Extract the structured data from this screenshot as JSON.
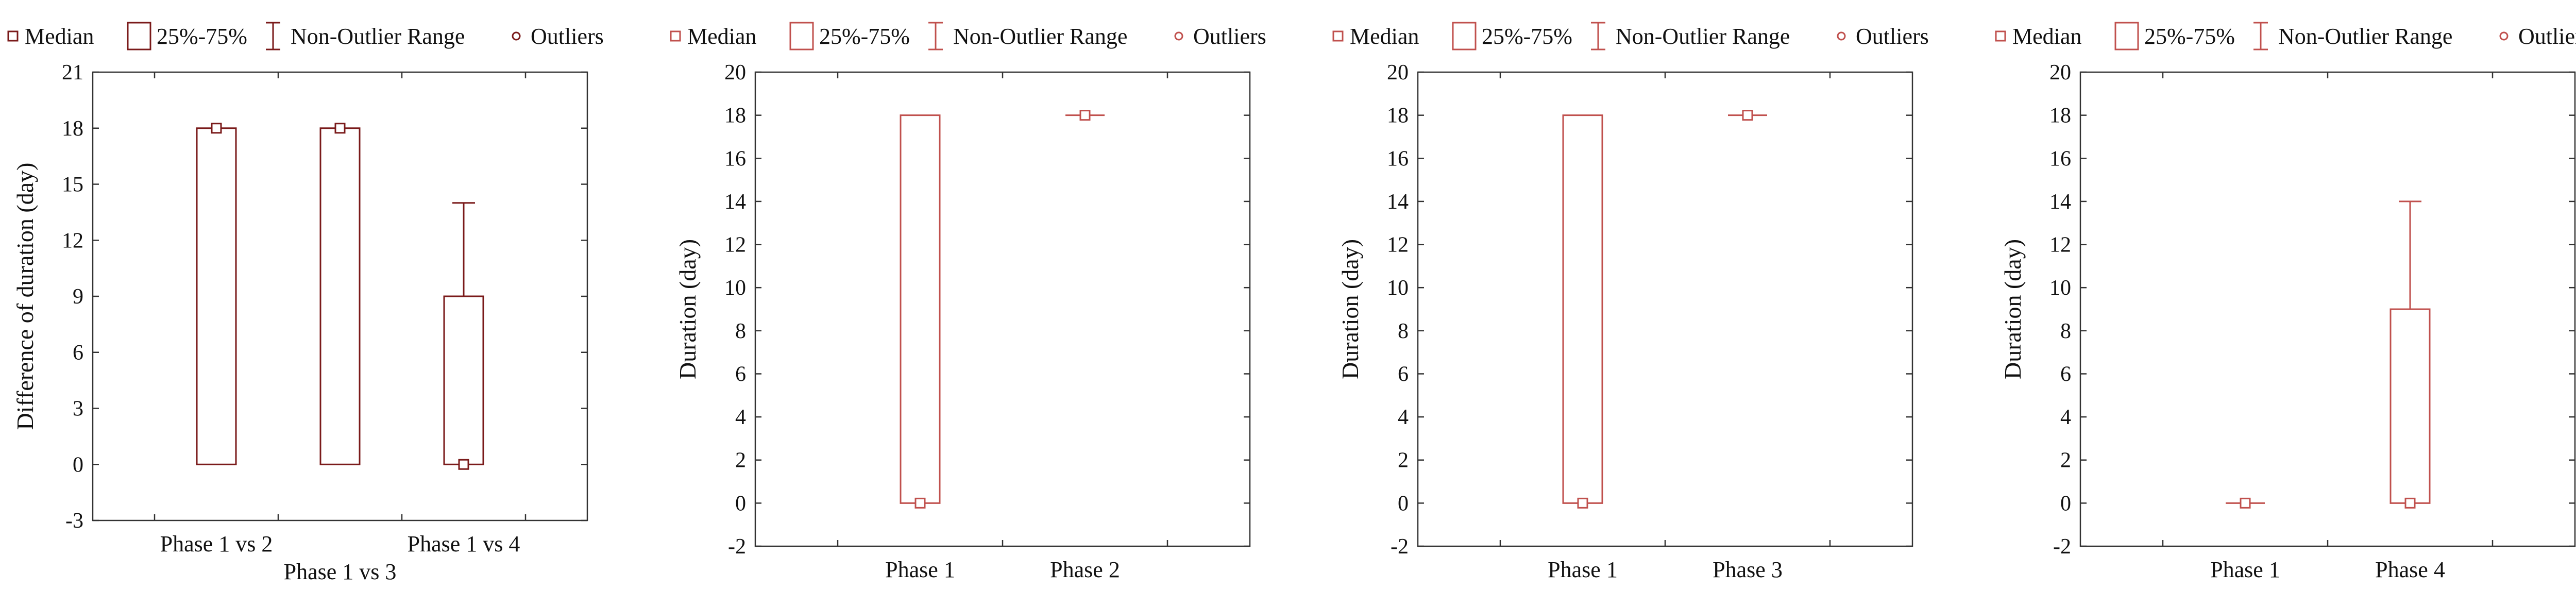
{
  "legend": {
    "median": "Median",
    "box": "25%-75%",
    "range": "Non-Outlier Range",
    "outliers": "Outliers"
  },
  "colors": {
    "box_dark": "#7a1a1a",
    "box_light": "#c0504d",
    "axis": "#333333"
  },
  "chart_data": [
    {
      "type": "box",
      "ylabel": "Difference of duration (day)",
      "xlabel": "",
      "ylim": [
        -3,
        21
      ],
      "yticks": [
        -3,
        0,
        3,
        6,
        9,
        12,
        15,
        18,
        21
      ],
      "categories": [
        "Phase 1 vs 2",
        "Phase 1 vs 3",
        "Phase 1 vs 4"
      ],
      "category_rows": [
        0,
        1,
        0
      ],
      "boxes": [
        {
          "median": 18,
          "q1": 0,
          "q3": 18,
          "min": 0,
          "max": 18
        },
        {
          "median": 18,
          "q1": 0,
          "q3": 18,
          "min": 0,
          "max": 18
        },
        {
          "median": 0,
          "q1": 0,
          "q3": 9,
          "min": 0,
          "max": 14
        }
      ]
    },
    {
      "type": "box",
      "ylabel": "Duration (day)",
      "xlabel": "",
      "ylim": [
        -2,
        20
      ],
      "yticks": [
        -2,
        0,
        2,
        4,
        6,
        8,
        10,
        12,
        14,
        16,
        18,
        20
      ],
      "categories": [
        "Phase 1",
        "Phase 2"
      ],
      "category_rows": [
        0,
        0
      ],
      "boxes": [
        {
          "median": 0,
          "q1": 0,
          "q3": 18,
          "min": 0,
          "max": 18
        },
        {
          "median": 18,
          "q1": 18,
          "q3": 18,
          "min": 18,
          "max": 18
        }
      ]
    },
    {
      "type": "box",
      "ylabel": "Duration (day)",
      "xlabel": "",
      "ylim": [
        -2,
        20
      ],
      "yticks": [
        -2,
        0,
        2,
        4,
        6,
        8,
        10,
        12,
        14,
        16,
        18,
        20
      ],
      "categories": [
        "Phase 1",
        "Phase 3"
      ],
      "category_rows": [
        0,
        0
      ],
      "boxes": [
        {
          "median": 0,
          "q1": 0,
          "q3": 18,
          "min": 0,
          "max": 18
        },
        {
          "median": 18,
          "q1": 18,
          "q3": 18,
          "min": 18,
          "max": 18
        }
      ]
    },
    {
      "type": "box",
      "ylabel": "Duration (day)",
      "xlabel": "",
      "ylim": [
        -2,
        20
      ],
      "yticks": [
        -2,
        0,
        2,
        4,
        6,
        8,
        10,
        12,
        14,
        16,
        18,
        20
      ],
      "categories": [
        "Phase 1",
        "Phase 4"
      ],
      "category_rows": [
        0,
        0
      ],
      "boxes": [
        {
          "median": 0,
          "q1": 0,
          "q3": 0,
          "min": 0,
          "max": 0
        },
        {
          "median": 0,
          "q1": 0,
          "q3": 9,
          "min": 0,
          "max": 14
        }
      ]
    }
  ]
}
